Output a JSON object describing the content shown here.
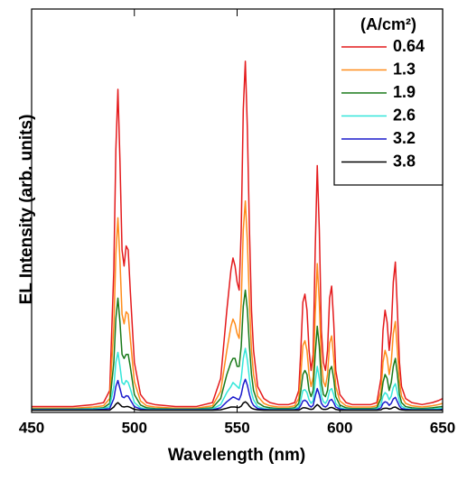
{
  "chart_data": {
    "type": "line",
    "xlabel": "Wavelength (nm)",
    "ylabel": "EL Intensity (arb. units)",
    "legend_title": "(A/cm²)",
    "legend": "upper right",
    "xlim": [
      450,
      650
    ],
    "xticks": [
      450,
      500,
      550,
      600,
      650
    ],
    "ylim": [
      0,
      1
    ],
    "x": [
      450,
      460,
      470,
      480,
      485,
      488,
      490,
      491,
      492,
      493,
      494,
      495,
      496,
      497,
      498,
      500,
      503,
      506,
      510,
      520,
      530,
      538,
      542,
      545,
      547,
      548,
      549,
      550,
      551,
      552,
      553,
      554,
      555,
      556,
      557,
      558,
      560,
      563,
      566,
      570,
      575,
      578,
      580,
      581,
      582,
      583,
      584,
      585,
      586,
      587,
      588,
      589,
      590,
      591,
      592,
      593,
      594,
      595,
      596,
      597,
      598,
      600,
      603,
      606,
      610,
      615,
      618,
      620,
      621,
      622,
      623,
      624,
      625,
      626,
      627,
      628,
      629,
      630,
      632,
      635,
      640,
      645,
      648,
      650
    ],
    "series": [
      {
        "name": "0.64",
        "color": "#e41a1c",
        "values": [
          0.01,
          0.01,
          0.01,
          0.015,
          0.02,
          0.05,
          0.35,
          0.65,
          0.8,
          0.62,
          0.4,
          0.36,
          0.41,
          0.4,
          0.3,
          0.12,
          0.04,
          0.02,
          0.015,
          0.01,
          0.01,
          0.02,
          0.08,
          0.25,
          0.35,
          0.38,
          0.36,
          0.32,
          0.3,
          0.45,
          0.75,
          0.87,
          0.7,
          0.45,
          0.25,
          0.15,
          0.06,
          0.03,
          0.02,
          0.015,
          0.015,
          0.02,
          0.05,
          0.15,
          0.27,
          0.29,
          0.25,
          0.15,
          0.1,
          0.14,
          0.4,
          0.61,
          0.45,
          0.2,
          0.12,
          0.1,
          0.15,
          0.28,
          0.31,
          0.22,
          0.1,
          0.04,
          0.02,
          0.015,
          0.015,
          0.015,
          0.02,
          0.08,
          0.2,
          0.25,
          0.22,
          0.15,
          0.2,
          0.32,
          0.37,
          0.25,
          0.12,
          0.06,
          0.03,
          0.02,
          0.015,
          0.02,
          0.025,
          0.03
        ]
      },
      {
        "name": "1.3",
        "color": "#ff8c1a",
        "values": [
          0.006,
          0.006,
          0.006,
          0.009,
          0.012,
          0.03,
          0.21,
          0.39,
          0.48,
          0.372,
          0.24,
          0.216,
          0.246,
          0.24,
          0.18,
          0.072,
          0.024,
          0.012,
          0.009,
          0.006,
          0.006,
          0.012,
          0.048,
          0.15,
          0.21,
          0.228,
          0.216,
          0.192,
          0.18,
          0.27,
          0.45,
          0.522,
          0.42,
          0.27,
          0.15,
          0.09,
          0.036,
          0.018,
          0.012,
          0.009,
          0.009,
          0.012,
          0.03,
          0.09,
          0.162,
          0.174,
          0.15,
          0.09,
          0.06,
          0.084,
          0.24,
          0.366,
          0.27,
          0.12,
          0.072,
          0.06,
          0.09,
          0.168,
          0.186,
          0.132,
          0.06,
          0.024,
          0.012,
          0.009,
          0.009,
          0.009,
          0.012,
          0.048,
          0.12,
          0.15,
          0.132,
          0.09,
          0.12,
          0.192,
          0.222,
          0.15,
          0.072,
          0.036,
          0.018,
          0.012,
          0.009,
          0.012,
          0.015,
          0.018
        ]
      },
      {
        "name": "1.9",
        "color": "#1a7a1a",
        "values": [
          0.004,
          0.004,
          0.004,
          0.005,
          0.007,
          0.018,
          0.12,
          0.23,
          0.28,
          0.22,
          0.14,
          0.13,
          0.14,
          0.14,
          0.11,
          0.04,
          0.014,
          0.007,
          0.005,
          0.004,
          0.004,
          0.007,
          0.03,
          0.09,
          0.12,
          0.13,
          0.13,
          0.11,
          0.11,
          0.16,
          0.26,
          0.3,
          0.25,
          0.16,
          0.09,
          0.05,
          0.02,
          0.01,
          0.007,
          0.005,
          0.005,
          0.007,
          0.018,
          0.05,
          0.09,
          0.1,
          0.09,
          0.05,
          0.035,
          0.05,
          0.14,
          0.21,
          0.16,
          0.07,
          0.04,
          0.035,
          0.05,
          0.1,
          0.11,
          0.08,
          0.035,
          0.014,
          0.007,
          0.005,
          0.005,
          0.005,
          0.007,
          0.03,
          0.07,
          0.09,
          0.08,
          0.05,
          0.07,
          0.11,
          0.13,
          0.09,
          0.04,
          0.02,
          0.01,
          0.007,
          0.005,
          0.007,
          0.009,
          0.01
        ]
      },
      {
        "name": "2.6",
        "color": "#33e6d9",
        "values": [
          0.003,
          0.003,
          0.003,
          0.004,
          0.005,
          0.01,
          0.06,
          0.12,
          0.145,
          0.11,
          0.07,
          0.065,
          0.075,
          0.07,
          0.055,
          0.02,
          0.007,
          0.004,
          0.003,
          0.003,
          0.003,
          0.004,
          0.015,
          0.045,
          0.06,
          0.07,
          0.065,
          0.06,
          0.055,
          0.08,
          0.13,
          0.155,
          0.125,
          0.08,
          0.045,
          0.027,
          0.01,
          0.005,
          0.004,
          0.003,
          0.003,
          0.004,
          0.009,
          0.027,
          0.05,
          0.052,
          0.045,
          0.027,
          0.018,
          0.025,
          0.07,
          0.11,
          0.08,
          0.036,
          0.022,
          0.018,
          0.027,
          0.05,
          0.055,
          0.04,
          0.018,
          0.007,
          0.004,
          0.003,
          0.003,
          0.003,
          0.004,
          0.015,
          0.036,
          0.045,
          0.04,
          0.027,
          0.036,
          0.058,
          0.067,
          0.045,
          0.022,
          0.011,
          0.005,
          0.004,
          0.003,
          0.004,
          0.005,
          0.006
        ]
      },
      {
        "name": "3.2",
        "color": "#1a1acc",
        "values": [
          0.002,
          0.002,
          0.002,
          0.002,
          0.003,
          0.005,
          0.03,
          0.06,
          0.075,
          0.055,
          0.035,
          0.032,
          0.037,
          0.036,
          0.027,
          0.01,
          0.004,
          0.002,
          0.002,
          0.002,
          0.002,
          0.002,
          0.007,
          0.022,
          0.03,
          0.034,
          0.032,
          0.029,
          0.027,
          0.04,
          0.065,
          0.078,
          0.063,
          0.04,
          0.022,
          0.013,
          0.005,
          0.003,
          0.002,
          0.002,
          0.002,
          0.002,
          0.005,
          0.013,
          0.024,
          0.026,
          0.022,
          0.013,
          0.009,
          0.013,
          0.036,
          0.055,
          0.04,
          0.018,
          0.011,
          0.009,
          0.013,
          0.025,
          0.028,
          0.02,
          0.009,
          0.004,
          0.002,
          0.002,
          0.002,
          0.002,
          0.002,
          0.007,
          0.018,
          0.022,
          0.02,
          0.013,
          0.018,
          0.029,
          0.033,
          0.022,
          0.011,
          0.005,
          0.003,
          0.002,
          0.002,
          0.002,
          0.002,
          0.003
        ]
      },
      {
        "name": "3.8",
        "color": "#000000",
        "values": [
          0.001,
          0.001,
          0.001,
          0.001,
          0.001,
          0.001,
          0.009,
          0.016,
          0.02,
          0.015,
          0.01,
          0.009,
          0.01,
          0.01,
          0.008,
          0.003,
          0.001,
          0.001,
          0.001,
          0.001,
          0.001,
          0.001,
          0.002,
          0.006,
          0.009,
          0.009,
          0.009,
          0.008,
          0.008,
          0.011,
          0.019,
          0.022,
          0.018,
          0.011,
          0.006,
          0.004,
          0.002,
          0.001,
          0.001,
          0.001,
          0.001,
          0.001,
          0.001,
          0.004,
          0.007,
          0.007,
          0.006,
          0.004,
          0.003,
          0.004,
          0.01,
          0.015,
          0.011,
          0.005,
          0.003,
          0.003,
          0.004,
          0.007,
          0.008,
          0.006,
          0.003,
          0.001,
          0.001,
          0.001,
          0.001,
          0.001,
          0.001,
          0.002,
          0.005,
          0.006,
          0.006,
          0.004,
          0.005,
          0.008,
          0.009,
          0.006,
          0.003,
          0.002,
          0.001,
          0.001,
          0.001,
          0.001,
          0.001,
          0.001
        ]
      }
    ]
  }
}
